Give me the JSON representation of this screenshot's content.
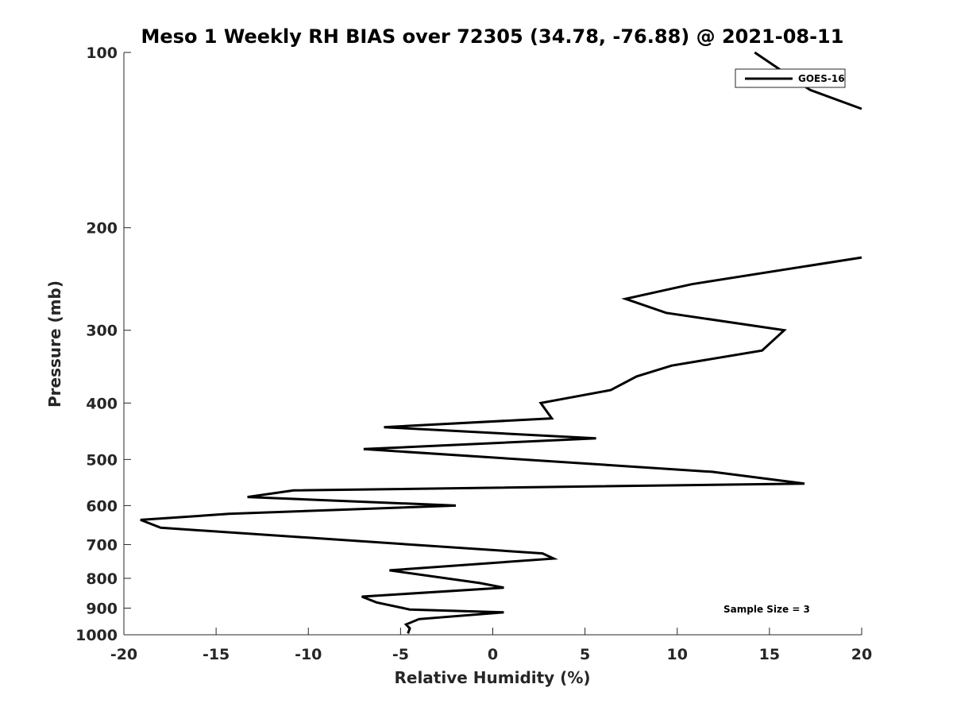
{
  "chart_data": {
    "type": "line",
    "title": "Meso 1 Weekly RH BIAS over 72305 (34.78, -76.88) @ 2021-08-11",
    "xlabel": "Relative Humidity (%)",
    "ylabel": "Pressure (mb)",
    "xlim": [
      -20,
      20
    ],
    "ylim": [
      100,
      1000
    ],
    "y_scale": "log",
    "y_reversed": true,
    "x_ticks": [
      -20,
      -15,
      -10,
      -5,
      0,
      5,
      10,
      15,
      20
    ],
    "y_ticks": [
      100,
      200,
      300,
      400,
      500,
      600,
      700,
      800,
      900,
      1000
    ],
    "grid": false,
    "legend_position": "top-right",
    "annotation": "Sample Size = 3",
    "series": [
      {
        "name": "GOES-16",
        "color": "#000000",
        "segments": [
          [
            {
              "x": 14.2,
              "p": 100
            },
            {
              "x": 17.2,
              "p": 116
            },
            {
              "x": 20.0,
              "p": 125
            }
          ],
          [
            {
              "x": 20.0,
              "p": 225
            },
            {
              "x": 10.8,
              "p": 250
            },
            {
              "x": 7.2,
              "p": 265
            },
            {
              "x": 9.4,
              "p": 280
            },
            {
              "x": 15.8,
              "p": 300
            },
            {
              "x": 14.6,
              "p": 325
            },
            {
              "x": 9.7,
              "p": 345
            },
            {
              "x": 7.8,
              "p": 360
            },
            {
              "x": 6.4,
              "p": 380
            },
            {
              "x": 2.6,
              "p": 400
            },
            {
              "x": 3.2,
              "p": 425
            },
            {
              "x": -5.9,
              "p": 440
            },
            {
              "x": 5.6,
              "p": 460
            },
            {
              "x": -7.0,
              "p": 480
            },
            {
              "x": 11.9,
              "p": 525
            },
            {
              "x": 16.9,
              "p": 550
            },
            {
              "x": -10.8,
              "p": 565
            },
            {
              "x": -13.3,
              "p": 580
            },
            {
              "x": -2.0,
              "p": 600
            },
            {
              "x": -14.3,
              "p": 620
            },
            {
              "x": -19.1,
              "p": 635
            },
            {
              "x": -18.0,
              "p": 655
            },
            {
              "x": 2.7,
              "p": 725
            },
            {
              "x": 3.3,
              "p": 740
            },
            {
              "x": -5.6,
              "p": 775
            },
            {
              "x": -0.7,
              "p": 815
            },
            {
              "x": 0.6,
              "p": 830
            },
            {
              "x": -7.1,
              "p": 860
            },
            {
              "x": -6.3,
              "p": 880
            },
            {
              "x": -4.5,
              "p": 905
            },
            {
              "x": 0.6,
              "p": 915
            },
            {
              "x": -4.0,
              "p": 940
            },
            {
              "x": -4.7,
              "p": 960
            },
            {
              "x": -4.5,
              "p": 975
            },
            {
              "x": -4.6,
              "p": 995
            }
          ]
        ]
      }
    ]
  }
}
